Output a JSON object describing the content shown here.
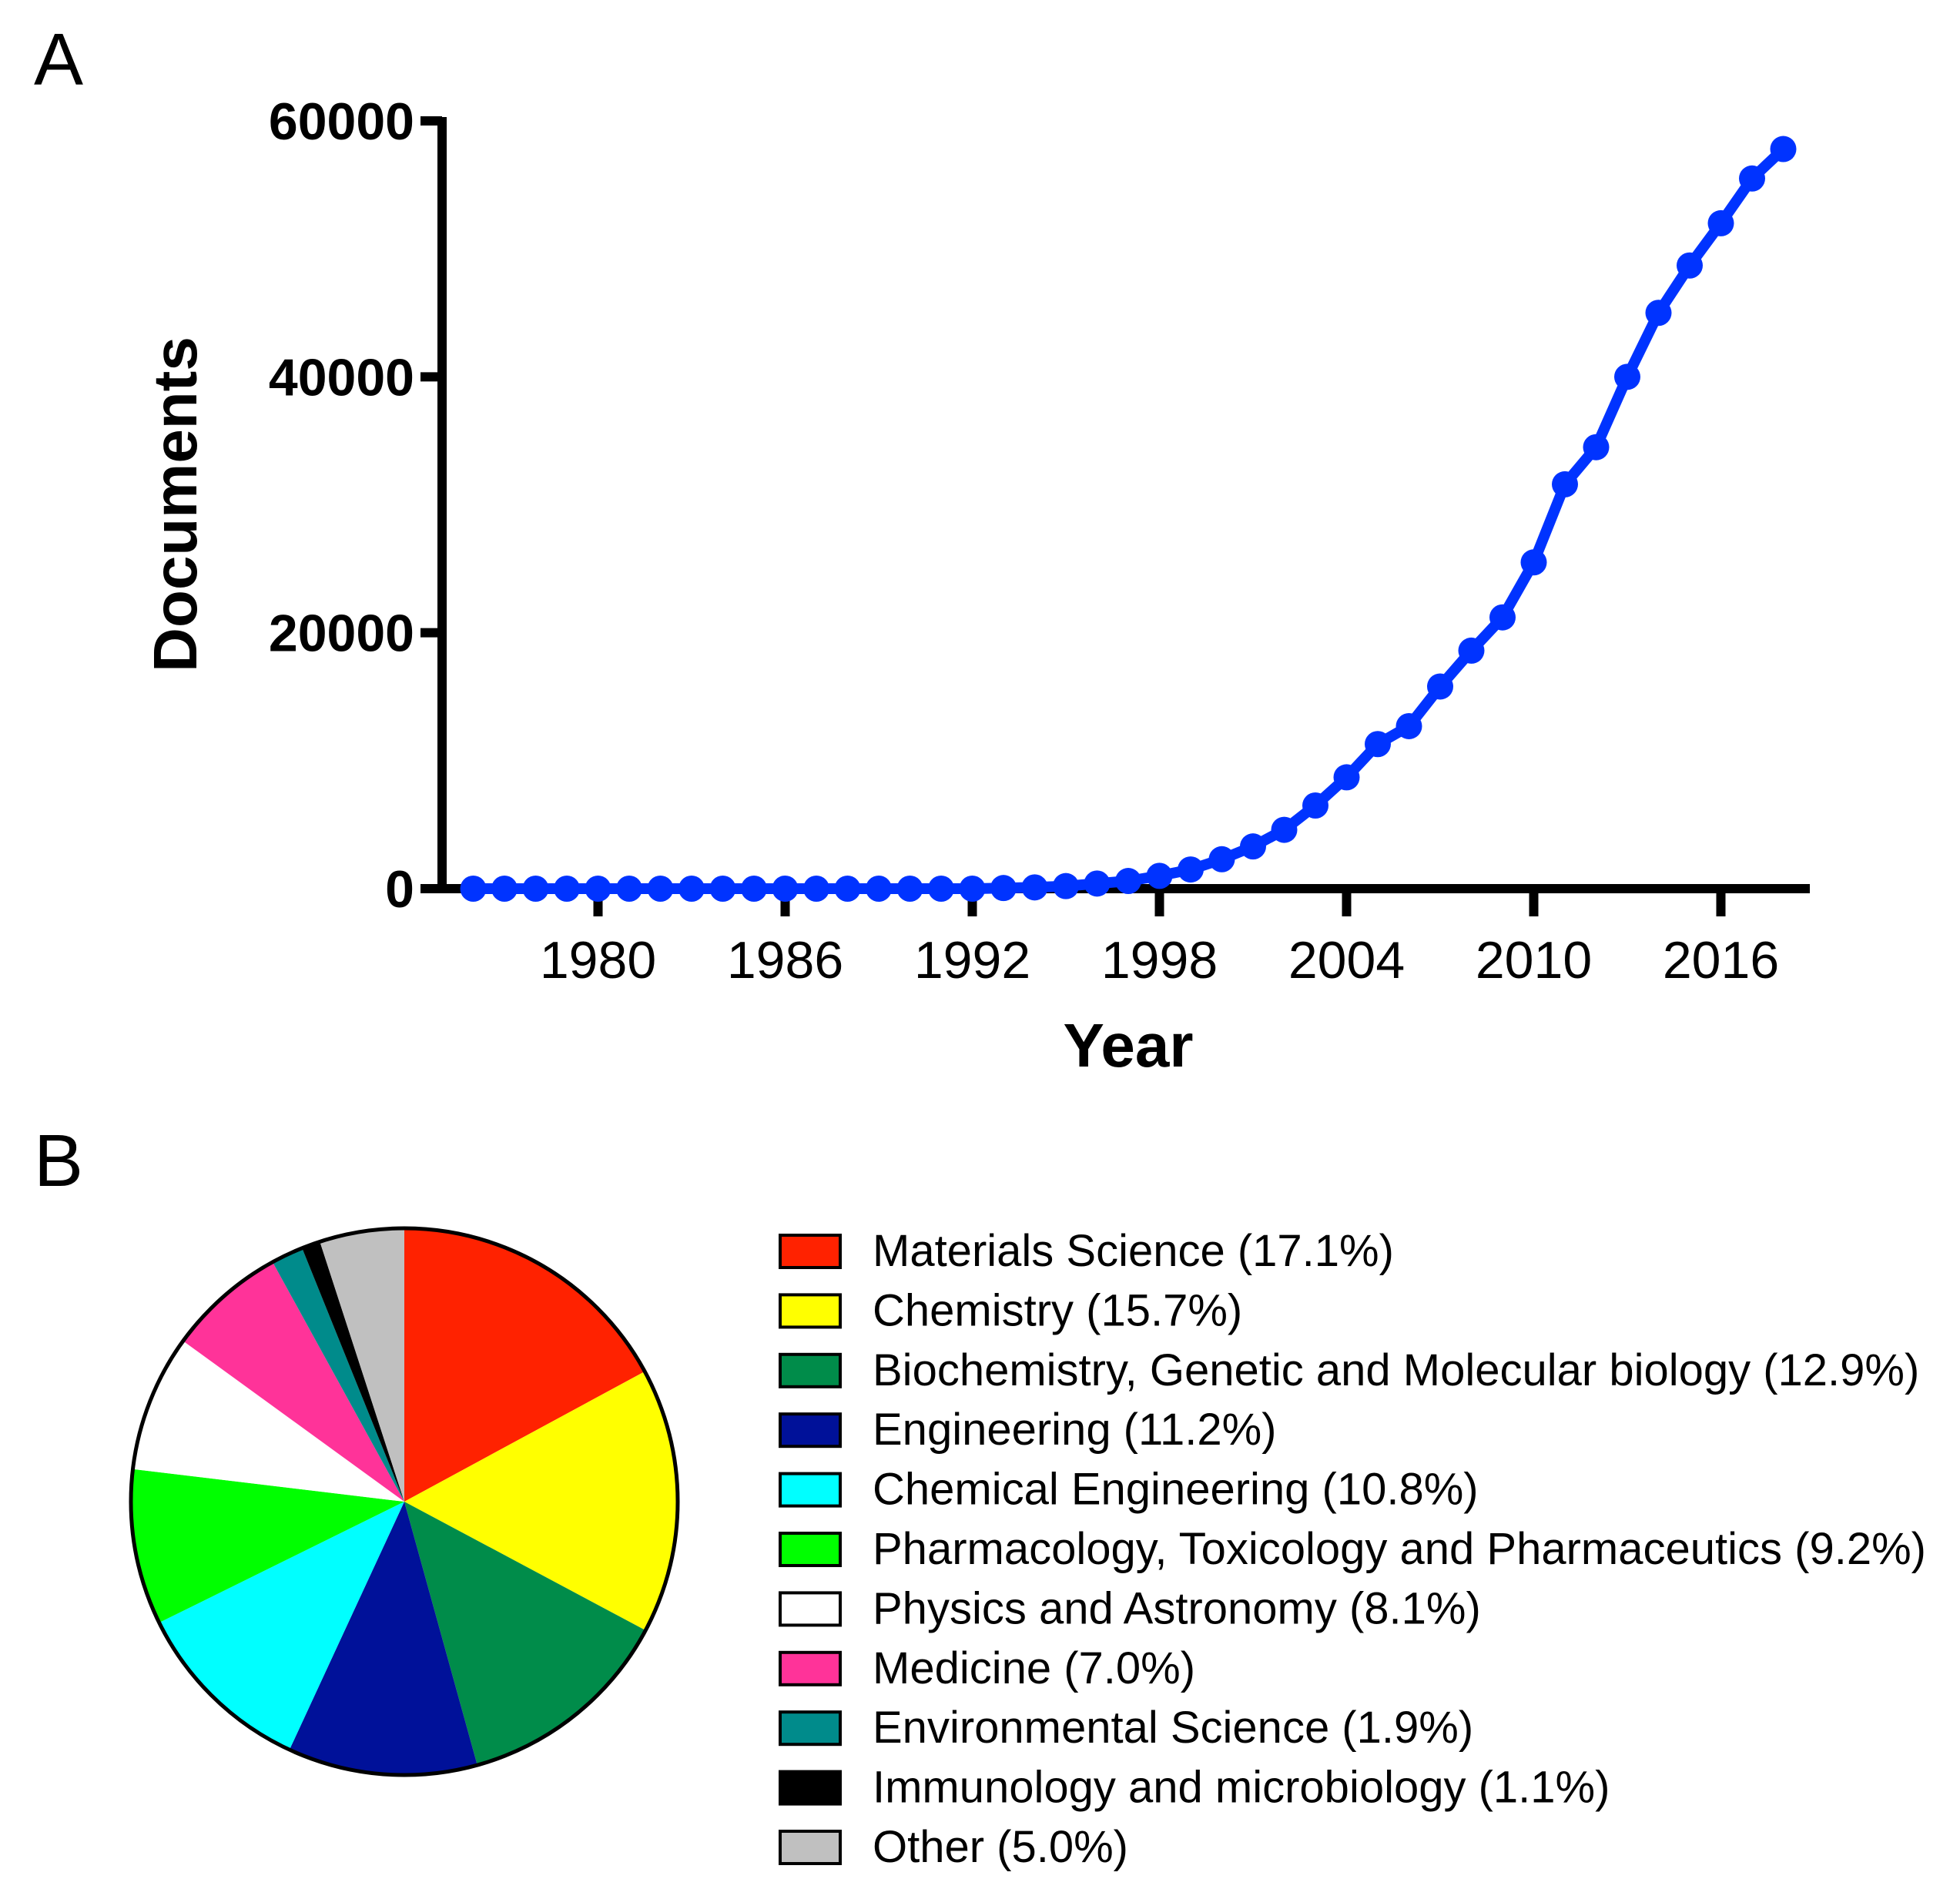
{
  "panels": {
    "a": "A",
    "b": "B"
  },
  "chart_data": [
    {
      "type": "line",
      "panel": "A",
      "title": "",
      "xlabel": "Year",
      "ylabel": "Documents",
      "xlim": [
        1975,
        2019
      ],
      "ylim": [
        0,
        60000
      ],
      "x_ticks": [
        1980,
        1986,
        1992,
        1998,
        2004,
        2010,
        2016
      ],
      "y_ticks": [
        0,
        20000,
        40000,
        60000
      ],
      "color": "#0033ff",
      "series": [
        {
          "name": "Documents",
          "x": [
            1976,
            1977,
            1978,
            1979,
            1980,
            1981,
            1982,
            1983,
            1984,
            1985,
            1986,
            1987,
            1988,
            1989,
            1990,
            1991,
            1992,
            1993,
            1994,
            1995,
            1996,
            1997,
            1998,
            1999,
            2000,
            2001,
            2002,
            2003,
            2004,
            2005,
            2006,
            2007,
            2008,
            2009,
            2010,
            2011,
            2012,
            2013,
            2014,
            2015,
            2016,
            2017,
            2018
          ],
          "y": [
            0,
            0,
            0,
            0,
            0,
            0,
            0,
            0,
            0,
            0,
            0,
            0,
            0,
            0,
            0,
            0,
            0,
            50,
            100,
            200,
            400,
            600,
            1000,
            1500,
            2300,
            3300,
            4600,
            6500,
            8700,
            11300,
            12700,
            15800,
            18600,
            21200,
            25500,
            31600,
            34500,
            40000,
            45000,
            48700,
            52000,
            55500,
            57800
          ]
        }
      ]
    },
    {
      "type": "pie",
      "panel": "B",
      "title": "",
      "slices": [
        {
          "label": "Materials Science",
          "value": 17.1,
          "display": "Materials Science (17.1%)",
          "color": "#ff2200"
        },
        {
          "label": "Chemistry",
          "value": 15.7,
          "display": "Chemistry (15.7%)",
          "color": "#ffff00"
        },
        {
          "label": "Biochemistry, Genetic and Molecular biology",
          "value": 12.9,
          "display": "Biochemistry, Genetic and Molecular biology (12.9%)",
          "color": "#008c4a"
        },
        {
          "label": "Engineering",
          "value": 11.2,
          "display": "Engineering (11.2%)",
          "color": "#001199"
        },
        {
          "label": "Chemical Engineering",
          "value": 10.8,
          "display": "Chemical Engineering (10.8%)",
          "color": "#00ffff"
        },
        {
          "label": "Pharmacology, Toxicology and Pharmaceutics",
          "value": 9.2,
          "display": "Pharmacology, Toxicology and Pharmaceutics (9.2%)",
          "color": "#00ff00"
        },
        {
          "label": "Physics and Astronomy",
          "value": 8.1,
          "display": "Physics and Astronomy (8.1%)",
          "color": "#ffffff"
        },
        {
          "label": "Medicine",
          "value": 7.0,
          "display": "Medicine (7.0%)",
          "color": "#ff3399"
        },
        {
          "label": "Environmental Science",
          "value": 1.9,
          "display": "Environmental Science (1.9%)",
          "color": "#008b8b"
        },
        {
          "label": "Immunology and microbiology",
          "value": 1.1,
          "display": "Immunology and microbiology (1.1%)",
          "color": "#000000"
        },
        {
          "label": "Other",
          "value": 5.0,
          "display": "Other (5.0%)",
          "color": "#c0c0c0"
        }
      ]
    }
  ]
}
